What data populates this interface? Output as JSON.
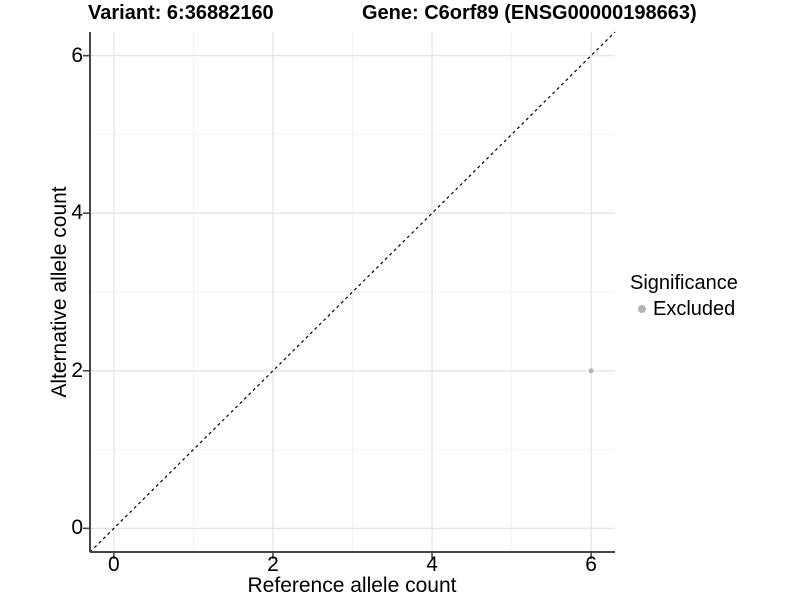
{
  "chart_data": {
    "type": "scatter",
    "title_left": "Variant: 6:36882160",
    "title_right": "Gene: C6orf89 (ENSG00000198663)",
    "xlabel": "Reference allele count",
    "ylabel": "Alternative allele count",
    "xlim": [
      -0.3,
      6.3
    ],
    "ylim": [
      -0.3,
      6.3
    ],
    "xticks": [
      0,
      2,
      4,
      6
    ],
    "yticks": [
      0,
      2,
      4,
      6
    ],
    "x_minor_ticks": [
      1,
      3,
      5
    ],
    "y_minor_ticks": [
      1,
      3,
      5
    ],
    "grid": "major+minor",
    "legend": {
      "title": "Significance",
      "position": "right",
      "entries": [
        {
          "label": "Excluded",
          "color": "#b4b4b4"
        }
      ]
    },
    "series": [
      {
        "name": "Excluded",
        "color": "#b4b4b4",
        "points": [
          {
            "x": 6,
            "y": 2
          }
        ]
      }
    ],
    "reference_line": {
      "type": "identity y=x",
      "style": "dashed",
      "color": "#000000"
    }
  }
}
